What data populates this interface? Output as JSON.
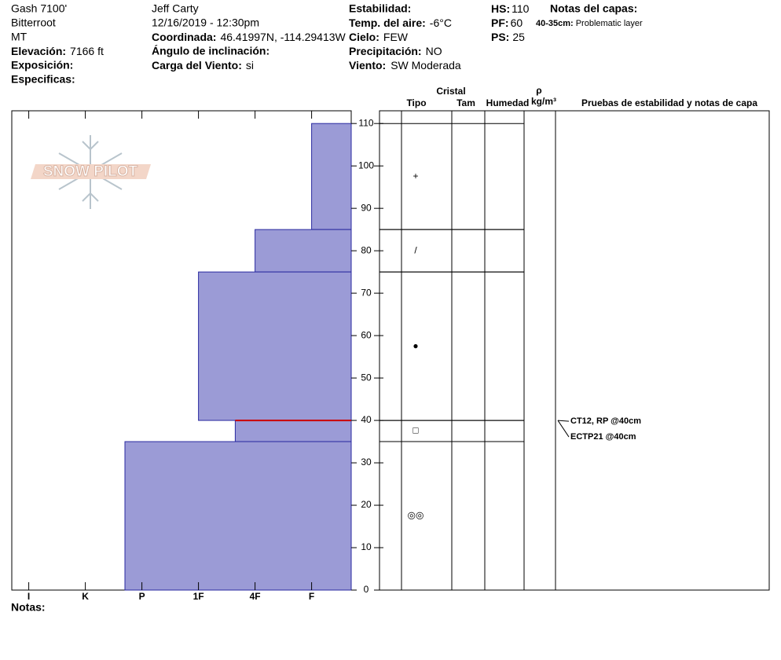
{
  "header": {
    "location": "Gash 7100'",
    "range": "Bitterroot",
    "state": "MT",
    "elevation": {
      "label": "Elevación:",
      "value": "7166 ft"
    },
    "exposure": {
      "label": "Exposición:"
    },
    "specifics": {
      "label": "Especificas:"
    },
    "observer": "Jeff Carty",
    "datetime": "12/16/2019 - 12:30pm",
    "coordinates": {
      "label": "Coordinada:",
      "value": "46.41997N, -114.29413W"
    },
    "slope": {
      "label": "Ángulo de inclinación:"
    },
    "wind_loading": {
      "label": "Carga del Viento:",
      "value": "si"
    },
    "stability": {
      "label": "Estabilidad:"
    },
    "air_temp": {
      "label": "Temp. del aire:",
      "value": "-6°C"
    },
    "sky": {
      "label": "Cielo:",
      "value": "FEW"
    },
    "precip": {
      "label": "Precipitación:",
      "value": "NO"
    },
    "wind": {
      "label": "Viento:",
      "value": "SW Moderada"
    },
    "hs": {
      "label": "HS:",
      "value": "110"
    },
    "pf": {
      "label": "PF:",
      "value": "60"
    },
    "ps": {
      "label": "PS:",
      "value": "25"
    },
    "layer_notes": {
      "title": "Notas del capas:",
      "items": [
        {
          "depth": "40-35cm:",
          "text": "Problematic layer"
        }
      ]
    },
    "logo": "SNOW PILOT",
    "notes": "Notas:"
  },
  "table_header": {
    "crystal": "Cristal",
    "type": "Tipo",
    "size": "Tam",
    "moisture": "Humedad",
    "rho": "ρ",
    "density_unit": "kg/m³",
    "tests": "Pruebas de estabilidad y notas de capa"
  },
  "chart_data": {
    "type": "snow-profile",
    "ylim": [
      0,
      113
    ],
    "yticks": [
      0,
      10,
      20,
      30,
      40,
      50,
      60,
      70,
      80,
      90,
      100,
      110
    ],
    "xlim": [
      6.3,
      0.3
    ],
    "xticks": [
      {
        "value": 6,
        "label": "I"
      },
      {
        "value": 5,
        "label": "K"
      },
      {
        "value": 4,
        "label": "P"
      },
      {
        "value": 3,
        "label": "1F"
      },
      {
        "value": 2,
        "label": "4F"
      },
      {
        "value": 1,
        "label": "F"
      }
    ],
    "color": "#9b9bd6",
    "layers": [
      {
        "top": 110,
        "bottom": 85,
        "hardness": 1,
        "grain": "+"
      },
      {
        "top": 85,
        "bottom": 75,
        "hardness": 2,
        "grain": "/"
      },
      {
        "top": 75,
        "bottom": 40,
        "hardness": 3,
        "grain": "●"
      },
      {
        "top": 40,
        "bottom": 35,
        "hardness": 2.35,
        "grain": "□"
      },
      {
        "top": 35,
        "bottom": 0,
        "hardness": 4.3,
        "grain": "◎◎"
      }
    ],
    "highlight": {
      "depth": 40,
      "color": "#cc0000"
    },
    "tests": [
      {
        "text": "CT12, RP @40cm",
        "depth": 40
      },
      {
        "text": "ECTP21 @40cm",
        "depth": 40
      }
    ]
  }
}
